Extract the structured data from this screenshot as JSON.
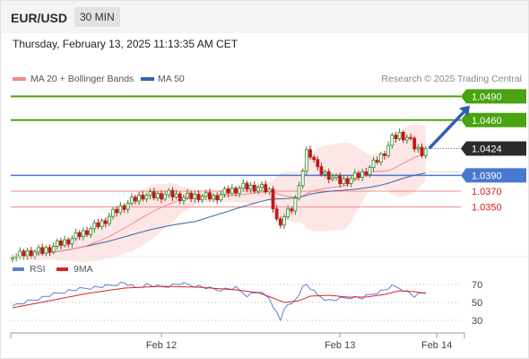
{
  "header": {
    "symbol": "EUR/USD",
    "timeframe": "30 MIN",
    "datetime": "Thursday, February 13, 2025 11:13:35 AM CET"
  },
  "colors": {
    "up": "#2e8b2e",
    "down": "#c01818",
    "ma20": "#f08a8a",
    "ma50": "#3a62a8",
    "band_fill": "#fde6e6",
    "resistance": "#4aa310",
    "pivot": "#4a78d0",
    "support": "#f08a8a",
    "support_text": "#d32020",
    "current": "#2b2b2b",
    "rsi": "#5b7fd4",
    "rsi_ma": "#dd2222",
    "arrow": "#2d5fb0"
  },
  "chart_data": [
    {
      "type": "candlestick",
      "legend": [
        {
          "name": "MA 20 + Bollinger Bands",
          "color": "#f08a8a"
        },
        {
          "name": "MA 50",
          "color": "#3a62a8"
        }
      ],
      "credit": "Research © 2025 Trading Central",
      "ylim": [
        1.027,
        1.052
      ],
      "x_ticks": [
        {
          "label": "Feb 12",
          "index": 40
        },
        {
          "label": "Feb 13",
          "index": 88
        },
        {
          "label": "Feb 14",
          "index": 114
        }
      ],
      "levels": [
        {
          "value": 1.049,
          "label": "1.0490",
          "kind": "resistance"
        },
        {
          "value": 1.046,
          "label": "1.0460",
          "kind": "resistance"
        },
        {
          "value": 1.0424,
          "label": "1.0424",
          "kind": "current"
        },
        {
          "value": 1.039,
          "label": "1.0390",
          "kind": "pivot"
        },
        {
          "value": 1.037,
          "label": "1.0370",
          "kind": "support"
        },
        {
          "value": 1.035,
          "label": "1.0350",
          "kind": "support"
        }
      ],
      "projection": {
        "from_index": 111,
        "from_value": 1.0424,
        "to_index": 120,
        "to_value": 1.0485
      },
      "anchors": [
        [
          0,
          1.0286
        ],
        [
          4,
          1.0292
        ],
        [
          8,
          1.0294
        ],
        [
          12,
          1.0302
        ],
        [
          16,
          1.031
        ],
        [
          20,
          1.032
        ],
        [
          24,
          1.033
        ],
        [
          27,
          1.0342
        ],
        [
          30,
          1.0352
        ],
        [
          33,
          1.036
        ],
        [
          35,
          1.0365
        ],
        [
          38,
          1.0364
        ],
        [
          42,
          1.0366
        ],
        [
          46,
          1.0362
        ],
        [
          50,
          1.0364
        ],
        [
          54,
          1.0362
        ],
        [
          58,
          1.037
        ],
        [
          62,
          1.0375
        ],
        [
          66,
          1.0375
        ],
        [
          69,
          1.037
        ],
        [
          71,
          1.0335
        ],
        [
          72,
          1.0322
        ],
        [
          73,
          1.034
        ],
        [
          75,
          1.035
        ],
        [
          77,
          1.0372
        ],
        [
          78,
          1.0398
        ],
        [
          79,
          1.042
        ],
        [
          80,
          1.0418
        ],
        [
          81,
          1.041
        ],
        [
          82,
          1.0396
        ],
        [
          85,
          1.039
        ],
        [
          88,
          1.0382
        ],
        [
          91,
          1.0386
        ],
        [
          94,
          1.0392
        ],
        [
          97,
          1.0404
        ],
        [
          100,
          1.042
        ],
        [
          102,
          1.0436
        ],
        [
          104,
          1.0442
        ],
        [
          106,
          1.0438
        ],
        [
          108,
          1.0426
        ],
        [
          110,
          1.042
        ],
        [
          111,
          1.0424
        ]
      ]
    },
    {
      "type": "line",
      "legend": [
        {
          "name": "RSI",
          "color": "#5b7fd4"
        },
        {
          "name": "9MA",
          "color": "#dd2222"
        }
      ],
      "ylim": [
        20,
        80
      ],
      "y_ticks": [
        70,
        50,
        30
      ],
      "series": [
        {
          "name": "RSI",
          "anchors": [
            [
              0,
              46
            ],
            [
              5,
              52
            ],
            [
              10,
              58
            ],
            [
              15,
              63
            ],
            [
              20,
              66
            ],
            [
              25,
              68
            ],
            [
              30,
              72
            ],
            [
              33,
              66
            ],
            [
              36,
              70
            ],
            [
              40,
              67
            ],
            [
              45,
              71
            ],
            [
              50,
              68
            ],
            [
              55,
              64
            ],
            [
              60,
              66
            ],
            [
              63,
              58
            ],
            [
              66,
              62
            ],
            [
              69,
              55
            ],
            [
              71,
              38
            ],
            [
              72,
              30
            ],
            [
              73,
              44
            ],
            [
              75,
              48
            ],
            [
              77,
              60
            ],
            [
              78,
              67
            ],
            [
              79,
              70
            ],
            [
              80,
              66
            ],
            [
              82,
              58
            ],
            [
              85,
              52
            ],
            [
              88,
              54
            ],
            [
              91,
              56
            ],
            [
              94,
              55
            ],
            [
              97,
              60
            ],
            [
              100,
              64
            ],
            [
              102,
              68
            ],
            [
              104,
              66
            ],
            [
              106,
              62
            ],
            [
              108,
              57
            ],
            [
              110,
              60
            ],
            [
              111,
              61
            ]
          ]
        },
        {
          "name": "9MA",
          "anchors": [
            [
              0,
              44
            ],
            [
              10,
              52
            ],
            [
              20,
              60
            ],
            [
              30,
              66
            ],
            [
              40,
              68
            ],
            [
              50,
              67
            ],
            [
              60,
              64
            ],
            [
              66,
              61
            ],
            [
              70,
              55
            ],
            [
              73,
              50
            ],
            [
              77,
              52
            ],
            [
              80,
              57
            ],
            [
              85,
              58
            ],
            [
              90,
              56
            ],
            [
              95,
              56
            ],
            [
              100,
              59
            ],
            [
              104,
              63
            ],
            [
              108,
              62
            ],
            [
              111,
              60
            ]
          ]
        }
      ]
    }
  ]
}
